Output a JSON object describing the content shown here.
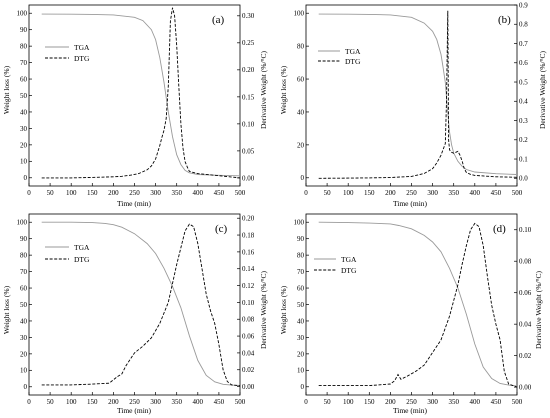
{
  "chart_data": [
    {
      "type": "line",
      "panel_label": "(a)",
      "xlabel": "Time (min)",
      "ylabel": "Weight loss (%)",
      "y2label": "Derivative Weight (%/°C)",
      "xlim": [
        0,
        500
      ],
      "ylim": [
        -5,
        105
      ],
      "y2lim": [
        -0.015,
        0.32
      ],
      "xticks": [
        0,
        50,
        100,
        150,
        200,
        250,
        300,
        350,
        400,
        450,
        500
      ],
      "yticks": [
        0,
        10,
        20,
        30,
        40,
        50,
        60,
        70,
        80,
        90,
        100
      ],
      "y2ticks": [
        0.0,
        0.05,
        0.1,
        0.15,
        0.2,
        0.25,
        0.3
      ],
      "y2ticklabels": [
        "0.00",
        "0.05",
        "0.10",
        "0.15",
        "0.20",
        "0.25",
        "0.30"
      ],
      "legend_position": "upper-left",
      "series": [
        {
          "name": "TGA",
          "axis": "left",
          "style": "solid",
          "x": [
            30,
            100,
            150,
            200,
            250,
            270,
            290,
            300,
            310,
            320,
            330,
            340,
            350,
            360,
            370,
            380,
            400,
            450,
            500
          ],
          "y": [
            99.5,
            99.4,
            99.3,
            99.0,
            97.5,
            95.5,
            90,
            84,
            73,
            58,
            40,
            25,
            14,
            8,
            4.5,
            3,
            2,
            1.5,
            1.2
          ]
        },
        {
          "name": "DTG",
          "axis": "right",
          "style": "dashed",
          "x": [
            30,
            100,
            150,
            200,
            220,
            240,
            260,
            280,
            290,
            300,
            310,
            315,
            320,
            325,
            330,
            335,
            340,
            345,
            350,
            355,
            360,
            365,
            370,
            375,
            380,
            400,
            450,
            500
          ],
          "y": [
            0.0,
            0.0,
            0.001,
            0.002,
            0.003,
            0.005,
            0.008,
            0.015,
            0.022,
            0.035,
            0.06,
            0.075,
            0.088,
            0.11,
            0.17,
            0.29,
            0.315,
            0.3,
            0.245,
            0.17,
            0.1,
            0.055,
            0.03,
            0.02,
            0.012,
            0.008,
            0.004,
            0.0
          ]
        }
      ]
    },
    {
      "type": "line",
      "panel_label": "(b)",
      "xlabel": "Time (min)",
      "ylabel": "Weight loss (%)",
      "y2label": "Derivative Weight (%/°C)",
      "xlim": [
        0,
        500
      ],
      "ylim": [
        -5,
        105
      ],
      "y2lim": [
        -0.04,
        0.9
      ],
      "xticks": [
        0,
        50,
        100,
        150,
        200,
        250,
        300,
        350,
        400,
        450,
        500
      ],
      "yticks": [
        0,
        20,
        40,
        60,
        80,
        100
      ],
      "y2ticks": [
        0.0,
        0.1,
        0.2,
        0.3,
        0.4,
        0.5,
        0.6,
        0.7,
        0.8,
        0.9
      ],
      "y2ticklabels": [
        "0.0",
        "0.1",
        "0.2",
        "0.3",
        "0.4",
        "0.5",
        "0.6",
        "0.7",
        "0.8",
        "0.9"
      ],
      "legend_position": "upper-left",
      "series": [
        {
          "name": "TGA",
          "axis": "left",
          "style": "solid",
          "x": [
            30,
            100,
            150,
            200,
            250,
            280,
            300,
            310,
            320,
            325,
            330,
            335,
            340,
            345,
            350,
            360,
            370,
            380,
            400,
            450,
            500
          ],
          "y": [
            99.5,
            99.4,
            99.3,
            99.0,
            97.5,
            94,
            89,
            84,
            75,
            67,
            58,
            42,
            28,
            20,
            15,
            10,
            7,
            5,
            3.5,
            2.5,
            2
          ]
        },
        {
          "name": "DTG",
          "axis": "right",
          "style": "dashed",
          "x": [
            30,
            100,
            150,
            200,
            250,
            280,
            300,
            310,
            320,
            330,
            333,
            336,
            338,
            340,
            342,
            345,
            350,
            355,
            360,
            365,
            370,
            375,
            380,
            390,
            400,
            450,
            500
          ],
          "y": [
            0.0,
            0.001,
            0.002,
            0.004,
            0.01,
            0.025,
            0.05,
            0.08,
            0.12,
            0.18,
            0.4,
            0.87,
            0.2,
            0.15,
            0.14,
            0.135,
            0.13,
            0.135,
            0.14,
            0.12,
            0.09,
            0.05,
            0.03,
            0.02,
            0.015,
            0.008,
            0.005
          ]
        }
      ]
    },
    {
      "type": "line",
      "panel_label": "(c)",
      "xlabel": "Time (min)",
      "ylabel": "Weight loss (%)",
      "y2label": "Derivative Weight (%/°C)",
      "xlim": [
        0,
        500
      ],
      "ylim": [
        -5,
        105
      ],
      "y2lim": [
        -0.01,
        0.205
      ],
      "xticks": [
        0,
        50,
        100,
        150,
        200,
        250,
        300,
        350,
        400,
        450,
        500
      ],
      "yticks": [
        0,
        10,
        20,
        30,
        40,
        50,
        60,
        70,
        80,
        90,
        100
      ],
      "y2ticks": [
        0.0,
        0.02,
        0.04,
        0.06,
        0.08,
        0.1,
        0.12,
        0.14,
        0.16,
        0.18,
        0.2
      ],
      "y2ticklabels": [
        "0.00",
        "0.02",
        "0.04",
        "0.06",
        "0.08",
        "0.10",
        "0.12",
        "0.14",
        "0.16",
        "0.18",
        "0.20"
      ],
      "legend_position": "upper-left",
      "series": [
        {
          "name": "TGA",
          "axis": "left",
          "style": "solid",
          "x": [
            30,
            100,
            150,
            180,
            200,
            220,
            250,
            280,
            300,
            320,
            340,
            360,
            380,
            400,
            420,
            440,
            460,
            480,
            500
          ],
          "y": [
            100,
            100,
            99.8,
            99.3,
            98.5,
            97,
            93,
            87,
            81,
            72,
            61,
            48,
            31,
            16,
            7,
            3,
            1.5,
            1,
            0.8
          ]
        },
        {
          "name": "DTG",
          "axis": "right",
          "style": "dashed",
          "x": [
            30,
            100,
            150,
            190,
            200,
            210,
            220,
            230,
            250,
            270,
            290,
            310,
            330,
            350,
            370,
            380,
            390,
            400,
            410,
            420,
            430,
            440,
            450,
            460,
            470,
            480,
            500
          ],
          "y": [
            0.002,
            0.002,
            0.003,
            0.004,
            0.008,
            0.012,
            0.015,
            0.025,
            0.04,
            0.048,
            0.058,
            0.075,
            0.1,
            0.145,
            0.185,
            0.193,
            0.19,
            0.17,
            0.14,
            0.11,
            0.09,
            0.075,
            0.05,
            0.02,
            0.006,
            0.002,
            0.001
          ]
        }
      ]
    },
    {
      "type": "line",
      "panel_label": "(d)",
      "xlabel": "Time (min)",
      "ylabel": "Weight loss (%)",
      "y2label": "Derivative Weight (%/°C)",
      "xlim": [
        0,
        500
      ],
      "ylim": [
        -5,
        105
      ],
      "y2lim": [
        -0.005,
        0.11
      ],
      "xticks": [
        0,
        50,
        100,
        150,
        200,
        250,
        300,
        350,
        400,
        450,
        500
      ],
      "yticks": [
        0,
        10,
        20,
        30,
        40,
        50,
        60,
        70,
        80,
        90,
        100
      ],
      "y2ticks": [
        0.0,
        0.02,
        0.04,
        0.06,
        0.08,
        0.1
      ],
      "y2ticklabels": [
        "0.00",
        "0.02",
        "0.04",
        "0.06",
        "0.08",
        "0.10"
      ],
      "legend_position": "upper-left",
      "series": [
        {
          "name": "TGA",
          "axis": "left",
          "style": "solid",
          "x": [
            30,
            100,
            150,
            200,
            220,
            250,
            280,
            300,
            320,
            340,
            360,
            380,
            400,
            420,
            440,
            460,
            480,
            500
          ],
          "y": [
            100,
            99.8,
            99.5,
            99,
            98,
            96,
            92,
            88,
            82,
            72,
            60,
            44,
            26,
            12,
            5,
            2,
            1,
            0.5
          ]
        },
        {
          "name": "DTG",
          "axis": "right",
          "style": "dashed",
          "x": [
            30,
            100,
            150,
            200,
            210,
            218,
            225,
            240,
            260,
            280,
            300,
            320,
            340,
            360,
            370,
            380,
            390,
            400,
            410,
            420,
            430,
            440,
            450,
            460,
            470,
            480,
            500
          ],
          "y": [
            0.001,
            0.001,
            0.001,
            0.002,
            0.004,
            0.008,
            0.005,
            0.007,
            0.01,
            0.014,
            0.022,
            0.03,
            0.045,
            0.065,
            0.078,
            0.09,
            0.1,
            0.104,
            0.102,
            0.09,
            0.07,
            0.052,
            0.04,
            0.03,
            0.01,
            0.002,
            0.0
          ]
        }
      ]
    }
  ]
}
